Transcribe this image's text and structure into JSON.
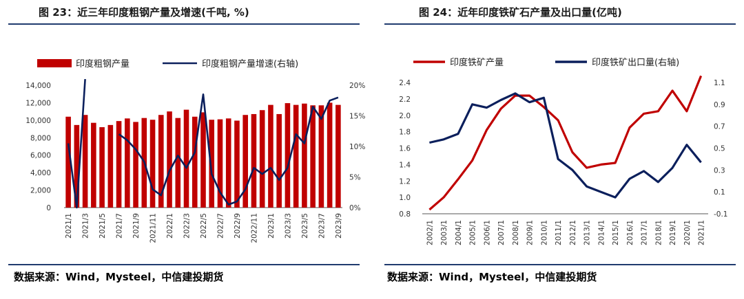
{
  "left_panel": {
    "title": "图 23：近三年印度粗钢产量及增速(千吨, %)",
    "source": "数据来源：Wind，Mysteel，中信建投期货"
  },
  "right_panel": {
    "title": "图 24：近年印度铁矿石产量及出口量(亿吨)",
    "source": "数据来源：Wind，Mysteel，中信建投期货"
  },
  "colors": {
    "red": "#c00000",
    "navy": "#0b1f5c",
    "axis": "#555555",
    "rule": "#1f3a6e"
  },
  "chart_data": [
    {
      "type": "bar",
      "title": "",
      "categories": [
        "2021/1",
        "2021/2",
        "2021/3",
        "2021/4",
        "2021/5",
        "2021/6",
        "2021/7",
        "2021/8",
        "2021/9",
        "2021/10",
        "2021/11",
        "2021/12",
        "2022/1",
        "2022/2",
        "2022/3",
        "2022/4",
        "2022/5",
        "2022/6",
        "2022/7",
        "2022/8",
        "2022/9",
        "2022/10",
        "2022/11",
        "2022/12",
        "2023/1",
        "2023/2",
        "2023/3",
        "2023/4",
        "2023/5",
        "2023/6",
        "2023/7",
        "2023/8",
        "2023/9"
      ],
      "x_tick_labels": [
        "2021/1",
        "2021/3",
        "2021/5",
        "2021/7",
        "2021/9",
        "2021/11",
        "2022/1",
        "2022/3",
        "2022/5",
        "2022/7",
        "2022/9",
        "2022/11",
        "2023/1",
        "2023/3",
        "2023/5",
        "2023/7",
        "2023/9"
      ],
      "series": [
        {
          "name": "印度粗钢产量",
          "type": "bar",
          "axis": "left",
          "values": [
            10400,
            9450,
            10600,
            9700,
            9200,
            9450,
            9900,
            10200,
            9800,
            10250,
            10050,
            10600,
            11000,
            10250,
            11200,
            10400,
            10900,
            10050,
            10100,
            10200,
            9950,
            10600,
            10700,
            11150,
            11750,
            10700,
            11950,
            11750,
            11900,
            11700,
            11700,
            12000,
            11750
          ]
        },
        {
          "name": "印度粗钢产量增速(右轴)",
          "type": "line",
          "axis": "right",
          "values": [
            10.5,
            0.0,
            21.0,
            null,
            null,
            null,
            12.0,
            11.0,
            9.5,
            7.5,
            3.0,
            2.0,
            6.0,
            8.5,
            6.5,
            9.0,
            18.5,
            5.5,
            2.5,
            0.5,
            1.0,
            3.0,
            6.5,
            5.5,
            6.5,
            4.5,
            6.5,
            12.0,
            10.5,
            16.5,
            14.5,
            17.5,
            18.0
          ]
        }
      ],
      "y_left": {
        "min": 0,
        "max": 14000,
        "ticks": [
          "0",
          "2,000",
          "4,000",
          "6,000",
          "8,000",
          "10,000",
          "12,000",
          "14,000"
        ]
      },
      "y_right": {
        "min": 0,
        "max": 20,
        "ticks": [
          "0%",
          "5%",
          "10%",
          "15%",
          "20%"
        ]
      },
      "legend": [
        "印度粗钢产量",
        "印度粗钢产量增速(右轴)"
      ],
      "legend_position": "top"
    },
    {
      "type": "line",
      "title": "",
      "categories": [
        "2002/1",
        "2003/1",
        "2004/1",
        "2005/1",
        "2006/1",
        "2007/1",
        "2008/1",
        "2009/1",
        "2010/1",
        "2011/1",
        "2012/1",
        "2013/1",
        "2014/1",
        "2015/1",
        "2016/1",
        "2017/1",
        "2018/1",
        "2019/1",
        "2020/1",
        "2021/1"
      ],
      "series": [
        {
          "name": "印度铁矿产量",
          "axis": "left",
          "values": [
            0.85,
            1.0,
            1.22,
            1.45,
            1.82,
            2.08,
            2.24,
            2.24,
            2.1,
            1.94,
            1.55,
            1.36,
            1.4,
            1.42,
            1.85,
            2.02,
            2.05,
            2.3,
            2.05,
            2.48
          ]
        },
        {
          "name": "印度铁矿出口量(右轴)",
          "axis": "right",
          "values": [
            0.55,
            0.58,
            0.63,
            0.9,
            0.87,
            0.94,
            1.0,
            0.92,
            0.96,
            0.4,
            0.3,
            0.15,
            0.1,
            0.05,
            0.22,
            0.29,
            0.19,
            0.32,
            0.53,
            0.37
          ]
        }
      ],
      "y_left": {
        "min": 0.8,
        "max": 2.4,
        "ticks": [
          "0.8",
          "1.0",
          "1.2",
          "1.4",
          "1.6",
          "1.8",
          "2.0",
          "2.2",
          "2.4"
        ]
      },
      "y_right": {
        "min": -0.1,
        "max": 1.1,
        "ticks": [
          "-0.1",
          "0.1",
          "0.3",
          "0.5",
          "0.7",
          "0.9",
          "1.1"
        ]
      },
      "legend": [
        "印度铁矿产量",
        "印度铁矿出口量(右轴)"
      ],
      "legend_position": "top"
    }
  ]
}
